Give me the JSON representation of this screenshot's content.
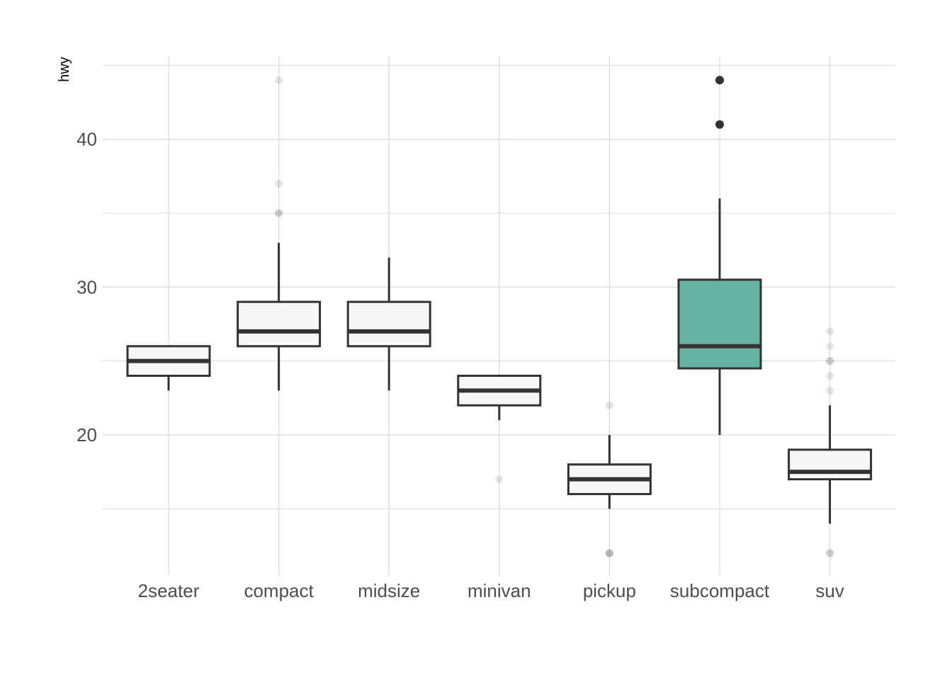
{
  "chart_data": {
    "type": "boxplot",
    "title": "",
    "xlabel": "",
    "ylabel": "hwy",
    "ylim": [
      10.5,
      45.6
    ],
    "y_major_ticks": [
      20,
      30,
      40
    ],
    "y_minor_gridlines": [
      15,
      25,
      35
    ],
    "grid": true,
    "legend": "none",
    "highlight_category": "subcompact",
    "colors": {
      "box_fill": "#f7f7f7",
      "highlight_fill": "#66b2a4",
      "box_stroke": "#333333",
      "outlier": "#333333",
      "grid": "#d9d9d9",
      "tick_text": "#4d4d4d"
    },
    "categories": [
      "2seater",
      "compact",
      "midsize",
      "minivan",
      "pickup",
      "subcompact",
      "suv"
    ],
    "boxes": [
      {
        "category": "2seater",
        "q1": 24,
        "median": 25,
        "q3": 26,
        "whisker_low": 23,
        "whisker_high": 26,
        "outliers": []
      },
      {
        "category": "compact",
        "q1": 26,
        "median": 27,
        "q3": 29,
        "whisker_low": 23,
        "whisker_high": 33,
        "outliers": [
          35,
          37,
          35,
          44
        ]
      },
      {
        "category": "midsize",
        "q1": 26,
        "median": 27,
        "q3": 29,
        "whisker_low": 23,
        "whisker_high": 32,
        "outliers": []
      },
      {
        "category": "minivan",
        "q1": 22,
        "median": 23,
        "q3": 24,
        "whisker_low": 21,
        "whisker_high": 24,
        "outliers": [
          17
        ]
      },
      {
        "category": "pickup",
        "q1": 16,
        "median": 17,
        "q3": 18,
        "whisker_low": 15,
        "whisker_high": 20,
        "outliers": [
          12,
          12,
          12,
          22
        ]
      },
      {
        "category": "subcompact",
        "q1": 24.5,
        "median": 26,
        "q3": 30.5,
        "whisker_low": 20,
        "whisker_high": 36,
        "outliers": [
          44,
          41
        ]
      },
      {
        "category": "suv",
        "q1": 17,
        "median": 17.5,
        "q3": 19,
        "whisker_low": 14,
        "whisker_high": 22,
        "outliers": [
          12,
          12,
          25,
          24,
          27,
          25,
          26,
          23
        ]
      }
    ]
  }
}
